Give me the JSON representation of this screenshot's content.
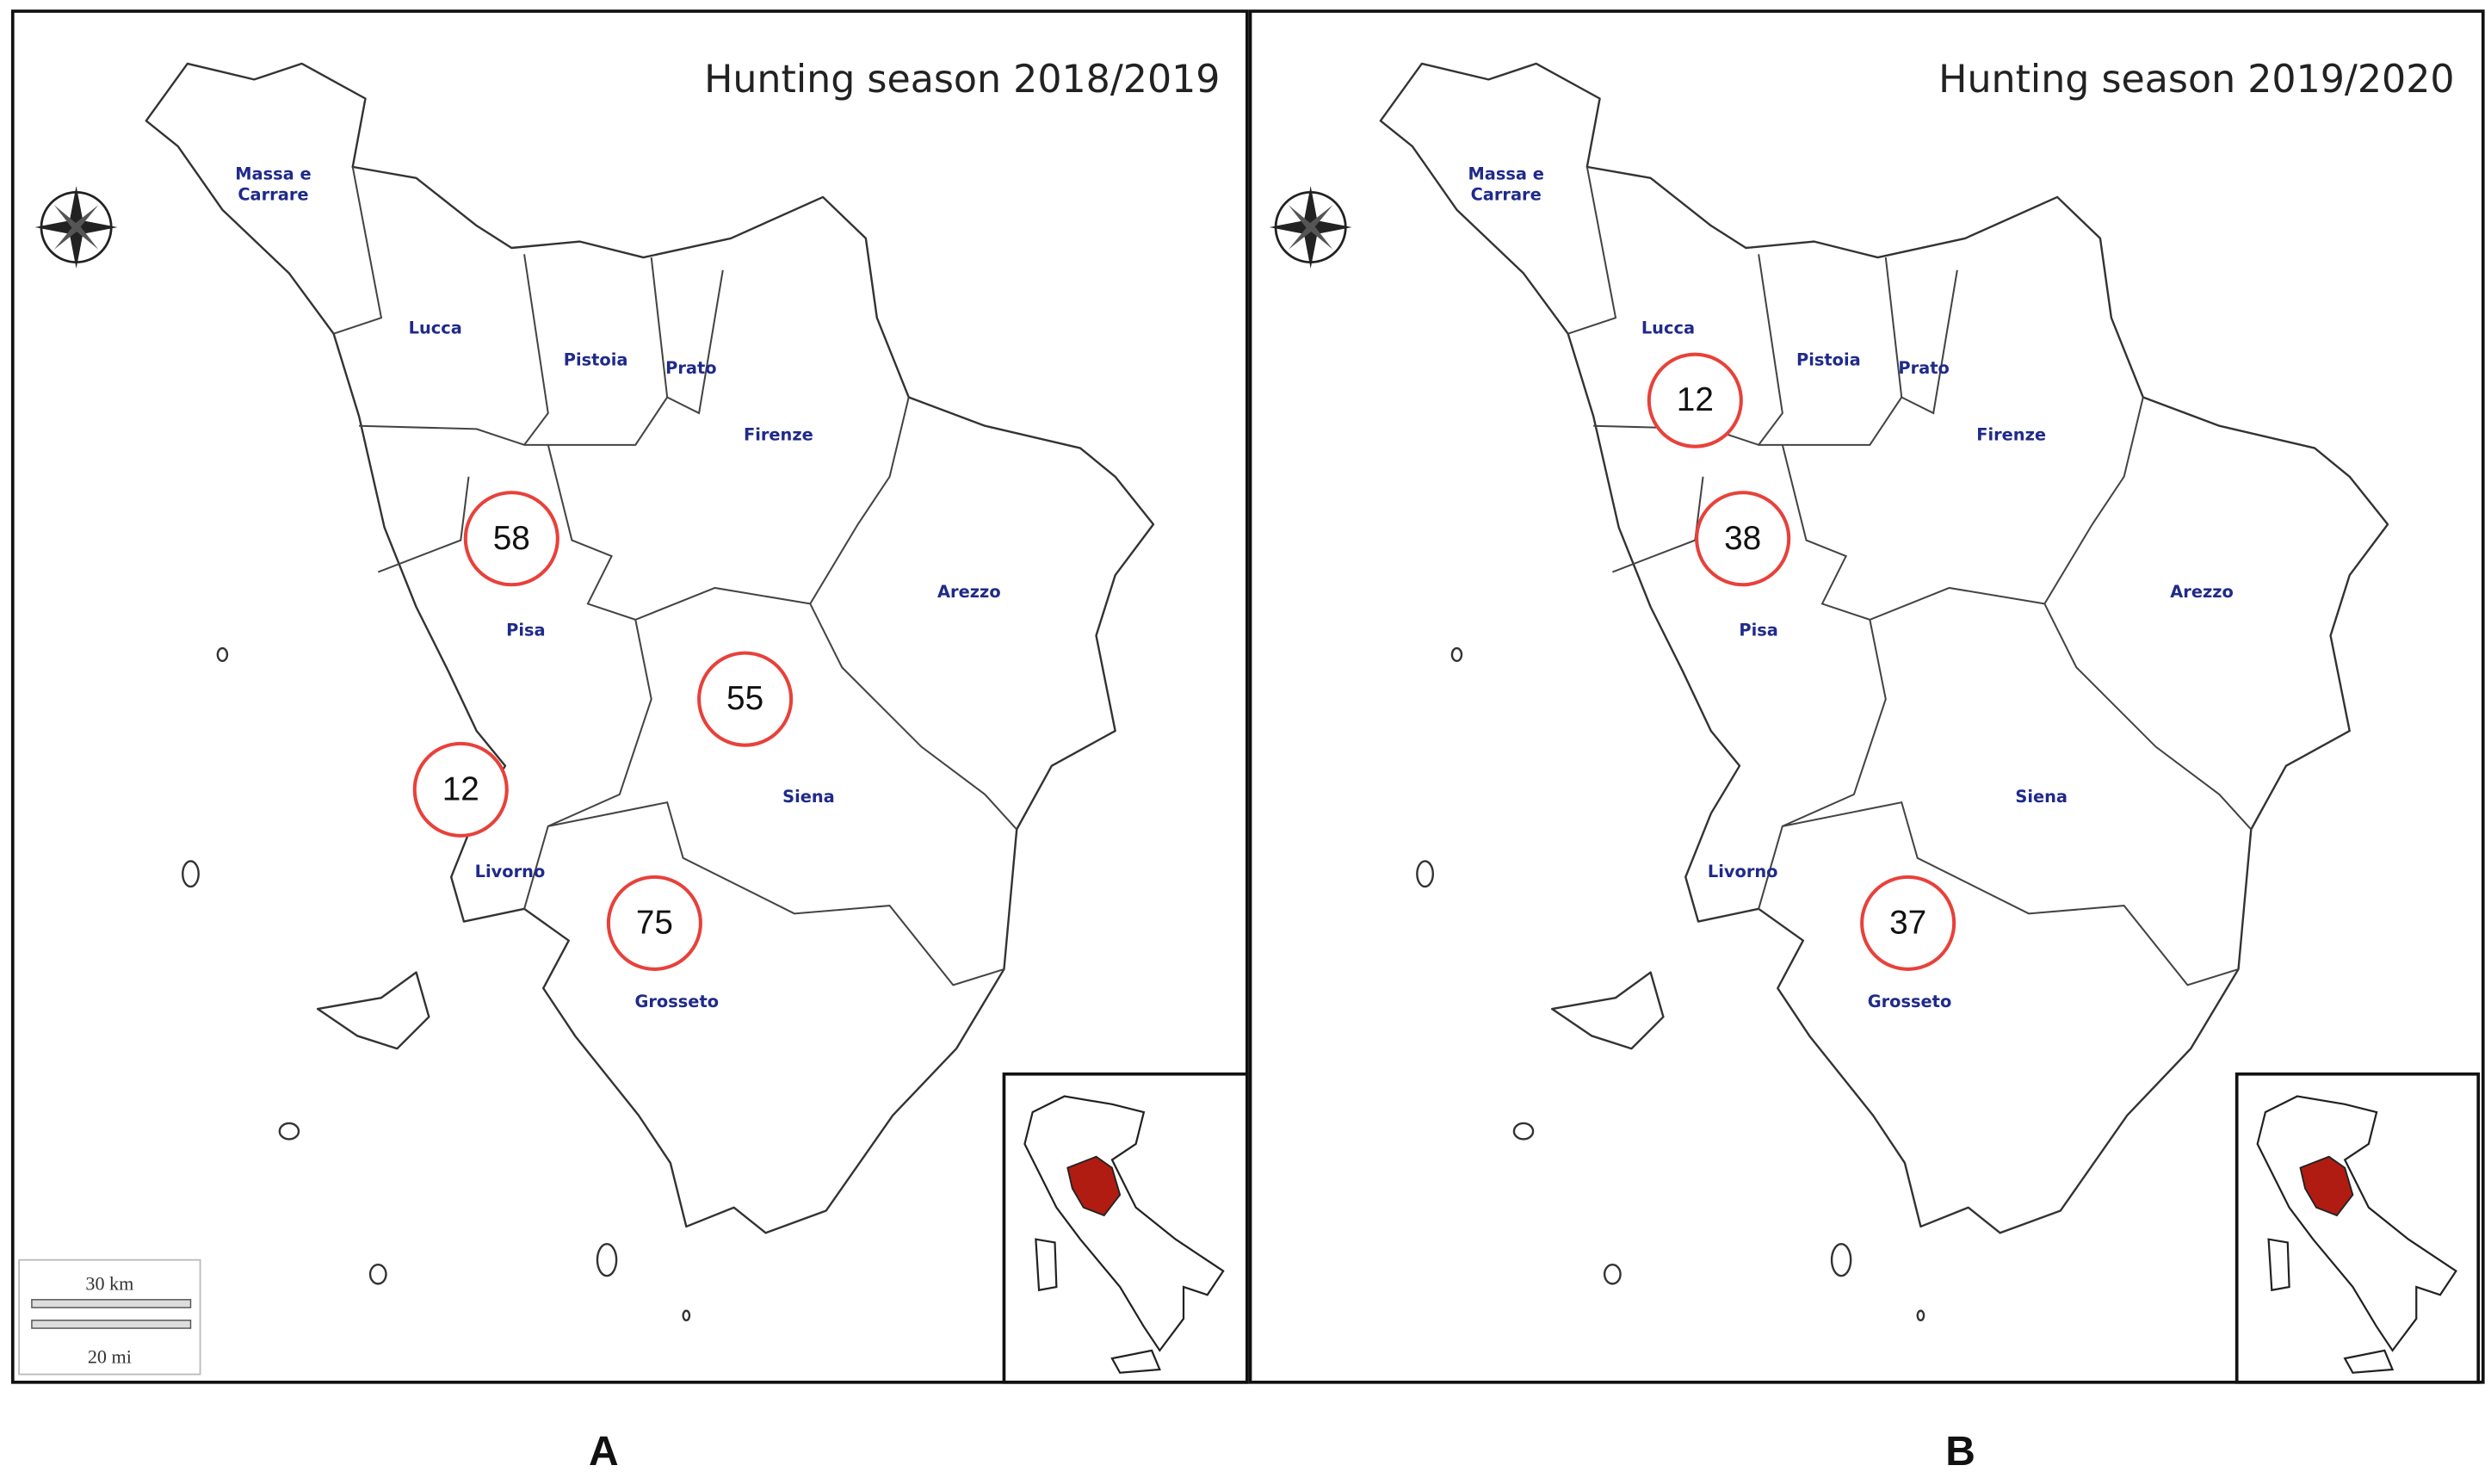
{
  "panels": [
    {
      "title": "Hunting season 2018/2019",
      "letter": "A",
      "provinces": [
        "Massa e Carrare",
        "Lucca",
        "Pistoia",
        "Prato",
        "Firenze",
        "Arezzo",
        "Pisa",
        "Siena",
        "Livorno",
        "Grosseto"
      ],
      "counts": [
        58,
        55,
        12,
        75
      ],
      "scale": [
        "30 km",
        "20 mi"
      ]
    },
    {
      "title": "Hunting season 2019/2020",
      "letter": "B",
      "provinces": [
        "Massa e Carrare",
        "Lucca",
        "Pistoia",
        "Prato",
        "Firenze",
        "Arezzo",
        "Pisa",
        "Siena",
        "Livorno",
        "Grosseto"
      ],
      "counts": [
        12,
        38,
        37
      ]
    }
  ]
}
